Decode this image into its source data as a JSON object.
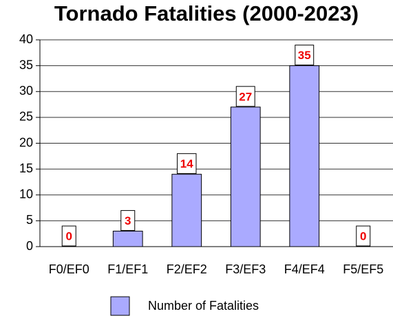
{
  "chart_data": {
    "type": "bar",
    "title": "Tornado Fatalities (2000-2023)",
    "categories": [
      "F0/EF0",
      "F1/EF1",
      "F2/EF2",
      "F3/EF3",
      "F4/EF4",
      "F5/EF5"
    ],
    "series": [
      {
        "name": "Number of Fatalities",
        "color": "#aaaaff",
        "values": [
          0,
          3,
          14,
          27,
          35,
          0
        ]
      }
    ],
    "ylim": [
      0,
      40
    ],
    "yticks": [
      0,
      5,
      10,
      15,
      20,
      25,
      30,
      35,
      40
    ],
    "grid": true,
    "legend": "bottom"
  }
}
